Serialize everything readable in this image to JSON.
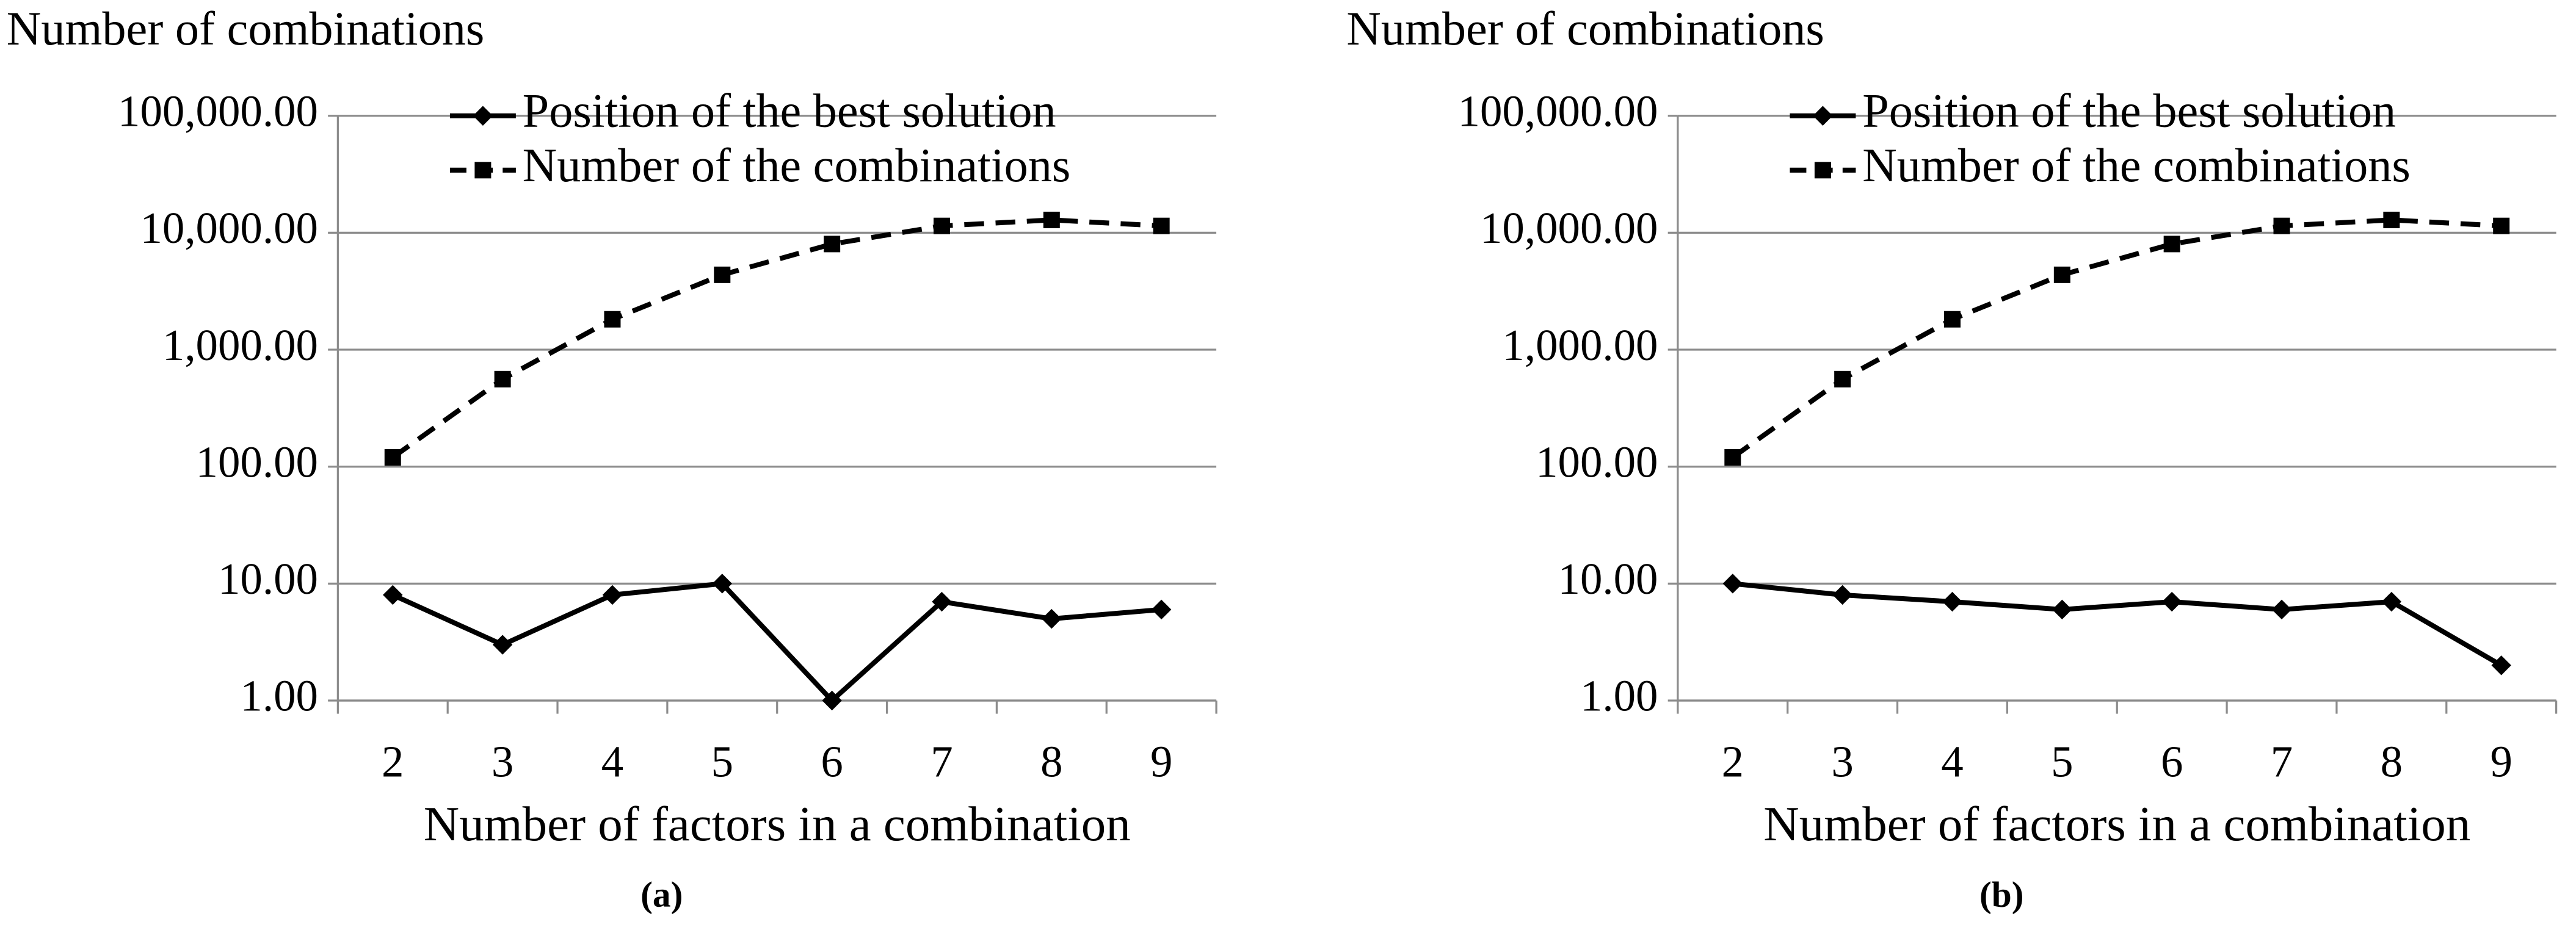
{
  "chart_data": [
    {
      "type": "line",
      "title": "Number of combinations",
      "x_label": "Number of factors in a combination",
      "caption": "(a)",
      "categories": [
        "2",
        "3",
        "4",
        "5",
        "6",
        "7",
        "8",
        "9"
      ],
      "log_scale": true,
      "grid": true,
      "legend": "top",
      "ylim": [
        1,
        100000
      ],
      "yticks": [
        {
          "value": 1,
          "label": "1.00"
        },
        {
          "value": 10,
          "label": "10.00"
        },
        {
          "value": 100,
          "label": "100.00"
        },
        {
          "value": 1000,
          "label": "1,000.00"
        },
        {
          "value": 10000,
          "label": "10,000.00"
        },
        {
          "value": 100000,
          "label": "100,000.00"
        }
      ],
      "series": [
        {
          "name": "Position of the best solution",
          "color": "#000000",
          "line_style": "solid",
          "marker": "diamond",
          "values": [
            8,
            3,
            8,
            10,
            1,
            7,
            5,
            6
          ]
        },
        {
          "name": "Number of the combinations",
          "color": "#000000",
          "line_style": "dashed",
          "marker": "square",
          "values": [
            120,
            560,
            1820,
            4368,
            8008,
            11440,
            12870,
            11440
          ]
        }
      ]
    },
    {
      "type": "line",
      "title": "Number of combinations",
      "x_label": "Number of factors in a combination",
      "caption": "(b)",
      "categories": [
        "2",
        "3",
        "4",
        "5",
        "6",
        "7",
        "8",
        "9"
      ],
      "log_scale": true,
      "grid": true,
      "legend": "top",
      "ylim": [
        1,
        100000
      ],
      "yticks": [
        {
          "value": 1,
          "label": "1.00"
        },
        {
          "value": 10,
          "label": "10.00"
        },
        {
          "value": 100,
          "label": "100.00"
        },
        {
          "value": 1000,
          "label": "1,000.00"
        },
        {
          "value": 10000,
          "label": "10,000.00"
        },
        {
          "value": 100000,
          "label": "100,000.00"
        }
      ],
      "series": [
        {
          "name": "Position of the best solution",
          "color": "#000000",
          "line_style": "solid",
          "marker": "diamond",
          "values": [
            10,
            8,
            7,
            6,
            7,
            6,
            7,
            2
          ]
        },
        {
          "name": "Number of the combinations",
          "color": "#000000",
          "line_style": "dashed",
          "marker": "square",
          "values": [
            120,
            560,
            1820,
            4368,
            8008,
            11440,
            12870,
            11440
          ]
        }
      ]
    }
  ]
}
